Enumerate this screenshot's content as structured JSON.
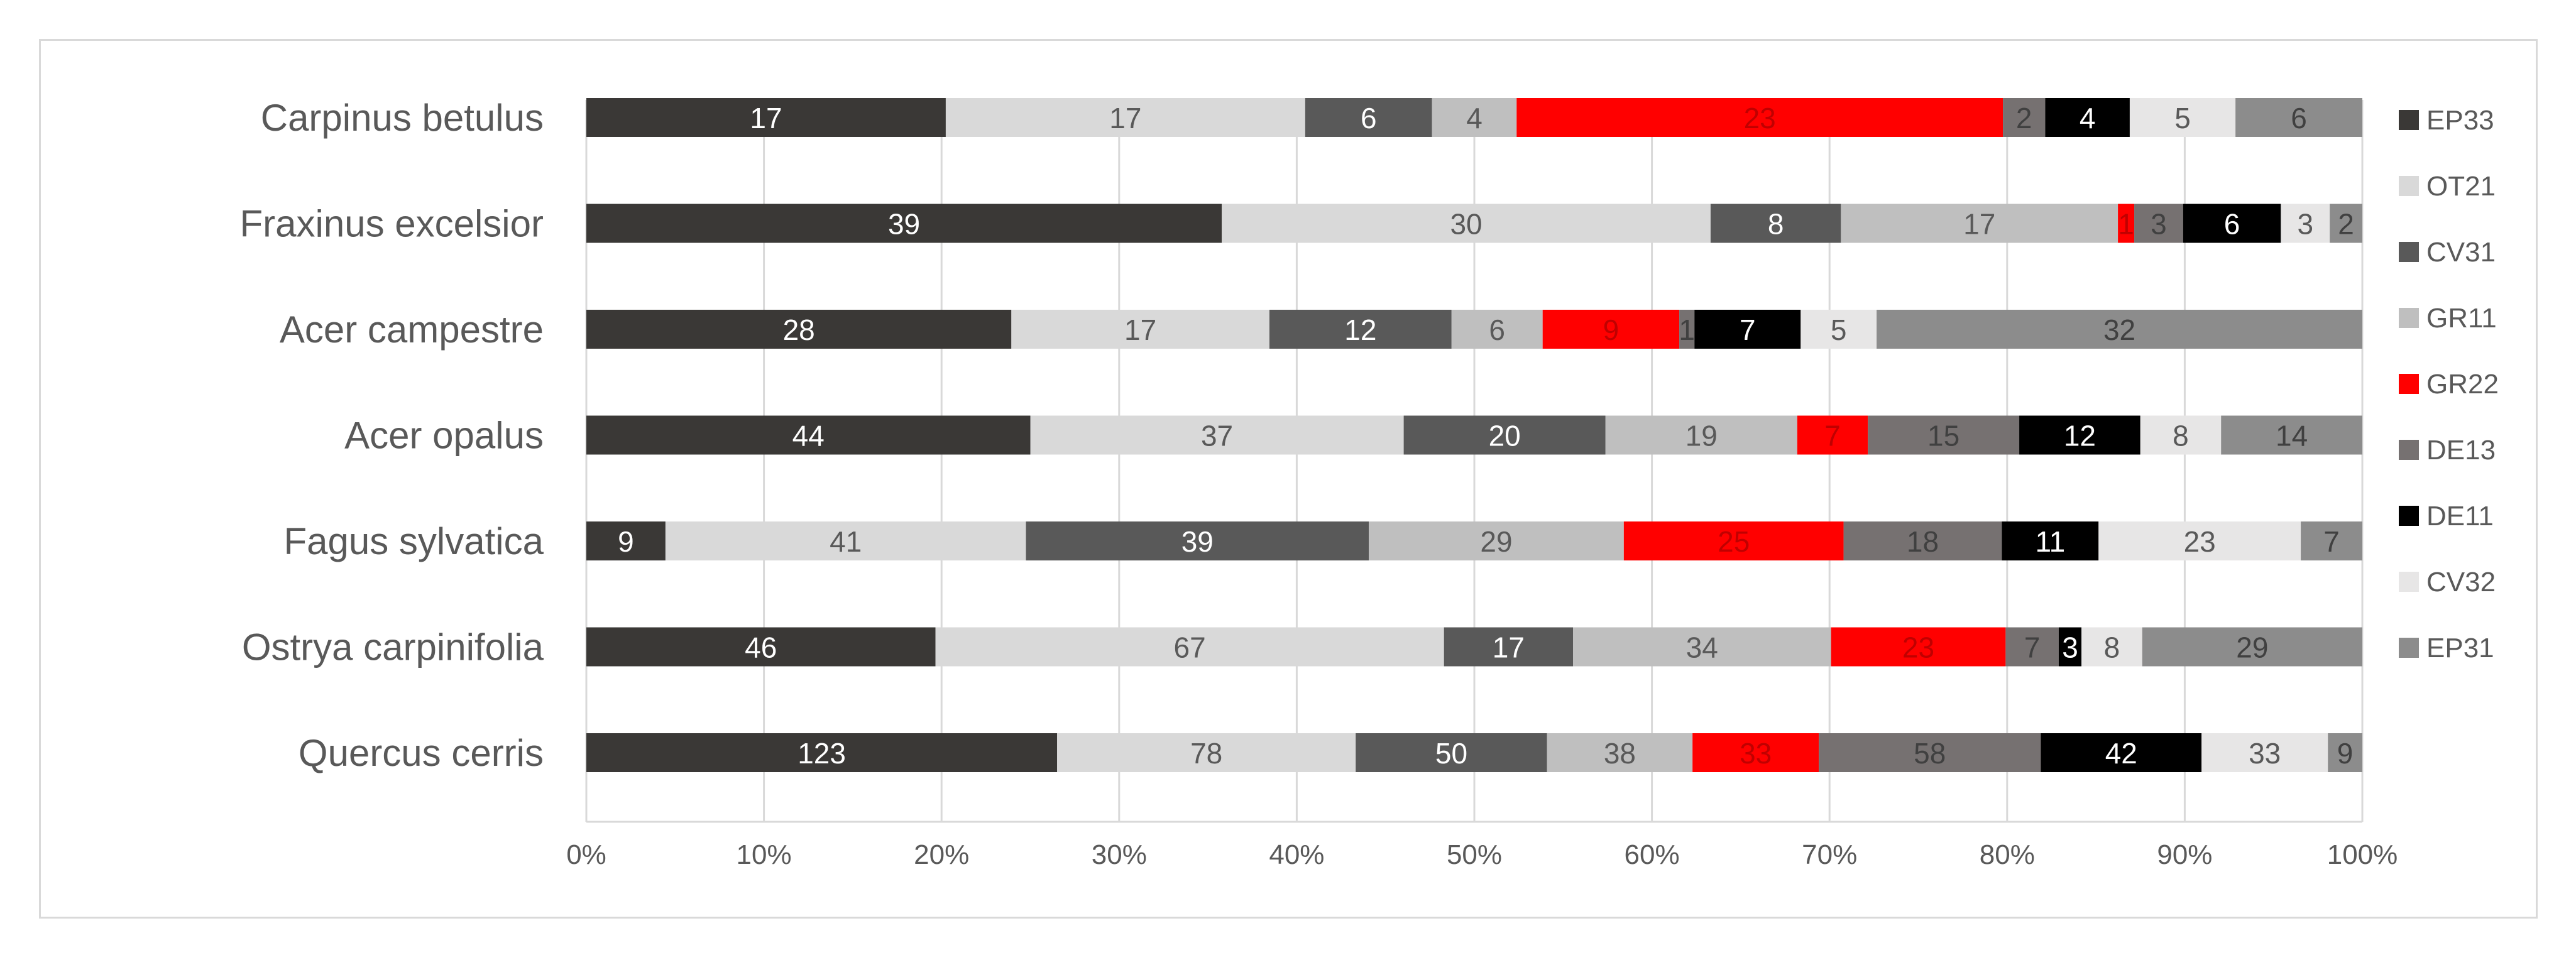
{
  "chart_data": {
    "type": "bar",
    "orientation": "horizontal",
    "stacking": "percent",
    "categories": [
      "Carpinus betulus",
      "Fraxinus excelsior",
      "Acer campestre",
      "Acer opalus",
      "Fagus sylvatica",
      "Ostrya carpinifolia",
      "Quercus cerris"
    ],
    "series": [
      {
        "name": "EP33",
        "color": "#3a3836",
        "label_color": "#ffffff",
        "values": [
          17,
          39,
          28,
          44,
          9,
          46,
          123
        ]
      },
      {
        "name": "OT21",
        "color": "#d9d9d9",
        "label_color": "#595959",
        "values": [
          17,
          30,
          17,
          37,
          41,
          67,
          78
        ]
      },
      {
        "name": "CV31",
        "color": "#595959",
        "label_color": "#ffffff",
        "values": [
          6,
          8,
          12,
          20,
          39,
          17,
          50
        ]
      },
      {
        "name": "GR11",
        "color": "#bfbfbf",
        "label_color": "#595959",
        "values": [
          4,
          17,
          6,
          19,
          29,
          34,
          38
        ]
      },
      {
        "name": "GR22",
        "color": "#ff0000",
        "label_color": "#c00000",
        "values": [
          23,
          1,
          9,
          7,
          25,
          23,
          33
        ]
      },
      {
        "name": "DE13",
        "color": "#767171",
        "label_color": "#404040",
        "values": [
          2,
          3,
          1,
          15,
          18,
          7,
          58
        ]
      },
      {
        "name": "DE11",
        "color": "#000000",
        "label_color": "#ffffff",
        "values": [
          4,
          6,
          7,
          12,
          11,
          3,
          42
        ]
      },
      {
        "name": "CV32",
        "color": "#e7e6e6",
        "label_color": "#595959",
        "values": [
          5,
          3,
          5,
          8,
          23,
          8,
          33
        ]
      },
      {
        "name": "EP31",
        "color": "#8c8c8c",
        "label_color": "#404040",
        "values": [
          6,
          2,
          32,
          14,
          7,
          29,
          9
        ]
      }
    ],
    "x_ticks": [
      "0%",
      "10%",
      "20%",
      "30%",
      "40%",
      "50%",
      "60%",
      "70%",
      "80%",
      "90%",
      "100%"
    ],
    "xlim": [
      0,
      100
    ],
    "title": "",
    "xlabel": "",
    "ylabel": "",
    "grid": "vertical",
    "legend": "right"
  }
}
